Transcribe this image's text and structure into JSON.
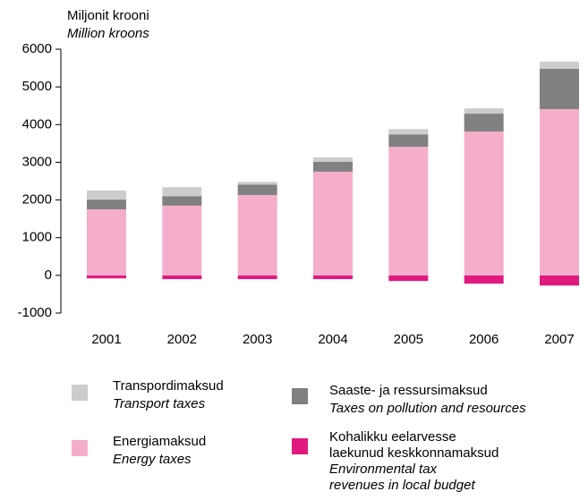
{
  "chart_data": {
    "type": "bar",
    "stacked": true,
    "y_label": "Miljonit krooni",
    "y_label_en": "Million kroons",
    "categories": [
      "2001",
      "2002",
      "2003",
      "2004",
      "2005",
      "2006",
      "2007"
    ],
    "series": [
      {
        "name": "Transpordimaksud",
        "name_en": "Transport taxes",
        "color": "#cccccc",
        "values": [
          240,
          240,
          70,
          120,
          140,
          140,
          190
        ]
      },
      {
        "name": "Saaste- ja ressursimaksud",
        "name_en": "Taxes on pollution and resources",
        "color": "#808080",
        "values": [
          260,
          250,
          280,
          260,
          330,
          475,
          1070
        ]
      },
      {
        "name": "Energiamaksud",
        "name_en": "Energy taxes",
        "color": "#f4aecb",
        "values": [
          1750,
          1850,
          2130,
          2750,
          3410,
          3815,
          4410
        ]
      },
      {
        "name": "Kohalikku eelarvesse\nlaekunud keskkonnamaksud",
        "name_en": "Environmental tax\nrevenues in local budget",
        "color": "#e0197e",
        "values": [
          -80,
          -100,
          -100,
          -100,
          -150,
          -220,
          -270
        ]
      }
    ],
    "ylim": [
      -1000,
      6000
    ],
    "yticks": [
      -1000,
      0,
      1000,
      2000,
      3000,
      4000,
      5000,
      6000
    ],
    "grid": false
  }
}
